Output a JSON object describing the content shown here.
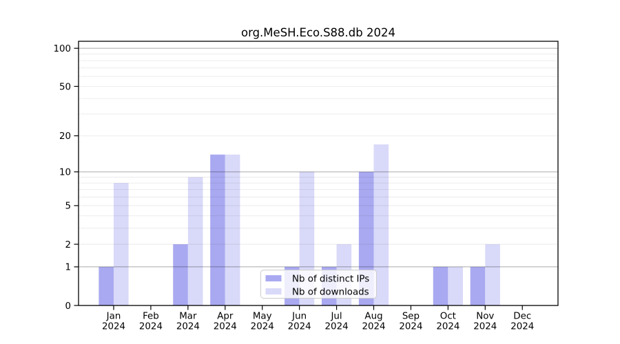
{
  "figure": {
    "title": "org.MeSH.Eco.S88.db 2024"
  },
  "chart_data": {
    "type": "bar",
    "title": "org.MeSH.Eco.S88.db 2024",
    "year_label": "2024",
    "categories": [
      "Jan",
      "Feb",
      "Mar",
      "Apr",
      "May",
      "Jun",
      "Jul",
      "Aug",
      "Sep",
      "Oct",
      "Nov",
      "Dec"
    ],
    "series": [
      {
        "name": "Nb of distinct IPs",
        "color": "#a9a9f1",
        "values": [
          1,
          0,
          2,
          14,
          0,
          1,
          1,
          10,
          0,
          1,
          1,
          0
        ]
      },
      {
        "name": "Nb of downloads",
        "color": "#d9d9f9",
        "values": [
          8,
          0,
          9,
          14,
          0,
          10,
          2,
          17,
          0,
          1,
          2,
          0
        ]
      }
    ],
    "xlabel": "",
    "ylabel": "",
    "yscale": "log1p",
    "ylim": [
      0,
      114
    ],
    "yticks": [
      0,
      1,
      2,
      5,
      10,
      20,
      50,
      100
    ],
    "yticks_major_grid": [
      1,
      10,
      100
    ],
    "yticks_minor_grid": [
      2,
      3,
      4,
      5,
      6,
      7,
      8,
      9,
      20,
      30,
      40,
      50,
      60,
      70,
      80,
      90
    ],
    "grid": true,
    "legend_position": "inside-bottom-center"
  },
  "colors": {
    "distinct_ips_bar": "#a9a9f1",
    "downloads_bar": "#d9d9f9",
    "major_gridline": "#b3b3b3",
    "minor_gridline": "#ebebeb",
    "axis_spine": "#000000",
    "legend_border": "#cccccc",
    "legend_background": "#ffffff"
  }
}
